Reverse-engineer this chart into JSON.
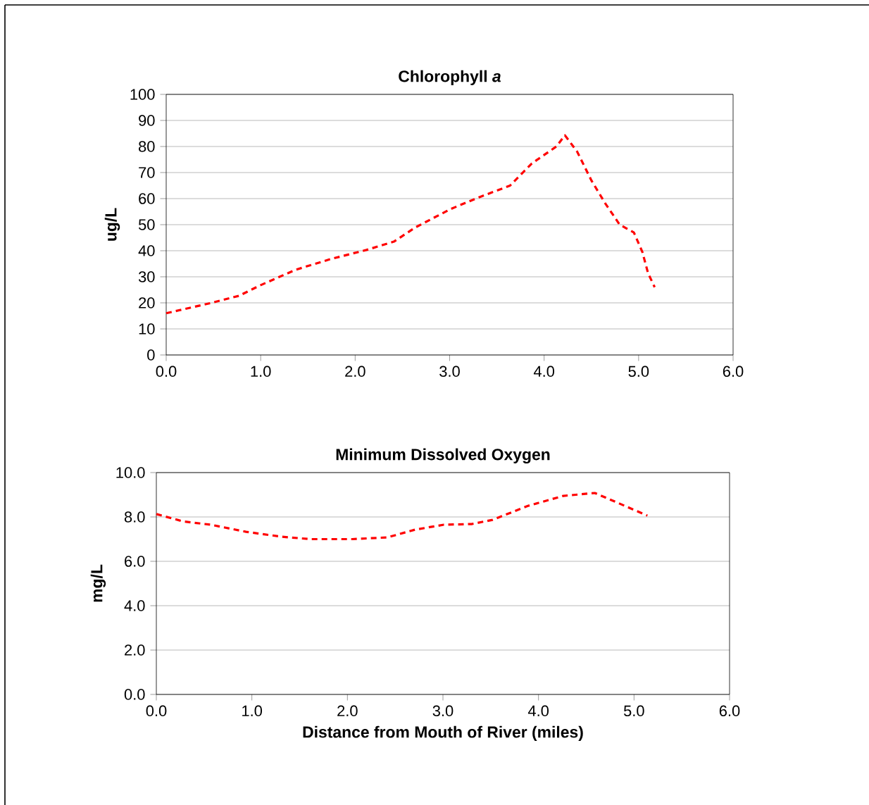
{
  "chart_data": [
    {
      "type": "line",
      "title": "Chlorophyll *a*",
      "ylabel": "ug/L",
      "x": [
        0,
        0.48,
        0.77,
        1.0,
        1.37,
        1.74,
        2.12,
        2.41,
        2.64,
        3.01,
        3.31,
        3.64,
        3.87,
        4.13,
        4.22,
        4.35,
        4.5,
        4.65,
        4.8,
        4.95,
        5.04,
        5.1,
        5.17
      ],
      "series": [
        {
          "color": "#ff0000",
          "values": [
            16,
            20,
            22.7,
            26.8,
            32.7,
            36.8,
            40.3,
            43.5,
            49,
            56,
            60.5,
            65,
            73.5,
            80,
            84.3,
            78,
            67,
            58,
            50,
            47,
            39.5,
            31.4,
            26
          ]
        }
      ],
      "xlim": [
        0,
        6
      ],
      "ylim": [
        0,
        100
      ],
      "xticks": [
        {
          "value": 0,
          "label": "0.0"
        },
        {
          "value": 1,
          "label": "1.0"
        },
        {
          "value": 2,
          "label": "2.0"
        },
        {
          "value": 3,
          "label": "3.0"
        },
        {
          "value": 4,
          "label": "4.0"
        },
        {
          "value": 5,
          "label": "5.0"
        },
        {
          "value": 6,
          "label": "6.0"
        }
      ],
      "yticks": [
        0,
        10,
        20,
        30,
        40,
        50,
        60,
        70,
        80,
        90,
        100
      ],
      "grid": "y",
      "legend": false,
      "marker": "none",
      "line_style": "dashed"
    },
    {
      "type": "line",
      "title": "Minimum Dissolved Oxygen",
      "xlabel": "Distance from Mouth of River (miles)",
      "ylabel": "mg/L",
      "x": [
        0,
        0.28,
        0.57,
        0.94,
        1.31,
        1.61,
        2.05,
        2.42,
        2.71,
        3.01,
        3.3,
        3.52,
        3.89,
        4.26,
        4.59,
        4.85,
        5.14
      ],
      "series": [
        {
          "color": "#ff0000",
          "values": [
            8.13,
            7.8,
            7.65,
            7.33,
            7.11,
            7.0,
            7.0,
            7.08,
            7.43,
            7.65,
            7.68,
            7.87,
            8.5,
            8.95,
            9.08,
            8.6,
            8.06
          ]
        }
      ],
      "xlim": [
        0,
        6
      ],
      "ylim": [
        0,
        10
      ],
      "xticks": [
        {
          "value": 0,
          "label": "0.0"
        },
        {
          "value": 1,
          "label": "1.0"
        },
        {
          "value": 2,
          "label": "2.0"
        },
        {
          "value": 3,
          "label": "3.0"
        },
        {
          "value": 4,
          "label": "4.0"
        },
        {
          "value": 5,
          "label": "5.0"
        },
        {
          "value": 6,
          "label": "6.0"
        }
      ],
      "yticks": [
        {
          "value": 0,
          "label": "0.0"
        },
        {
          "value": 2,
          "label": "2.0"
        },
        {
          "value": 4,
          "label": "4.0"
        },
        {
          "value": 6,
          "label": "6.0"
        },
        {
          "value": 8,
          "label": "8.0"
        },
        {
          "value": 10,
          "label": "10.0"
        }
      ],
      "grid": "y",
      "legend": false,
      "marker": "none",
      "line_style": "dashed"
    }
  ]
}
